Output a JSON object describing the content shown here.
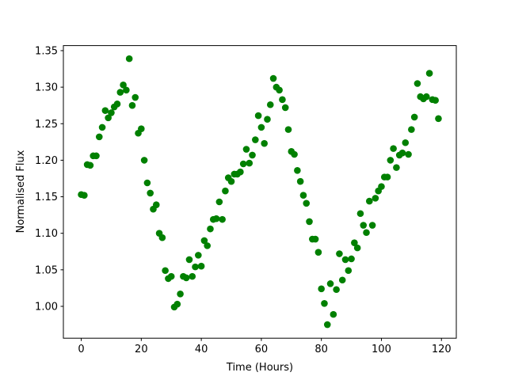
{
  "chart_data": {
    "type": "scatter",
    "x_label": "Time (Hours)",
    "y_label": "Normalised Flux",
    "color": "#008000",
    "x": [
      0,
      1,
      2,
      3,
      4,
      5,
      6,
      7,
      8,
      9,
      10,
      11,
      12,
      13,
      14,
      15,
      16,
      17,
      18,
      19,
      20,
      21,
      22,
      23,
      24,
      25,
      26,
      27,
      28,
      29,
      30,
      31,
      32,
      33,
      34,
      35,
      36,
      37,
      38,
      39,
      40,
      41,
      42,
      43,
      44,
      45,
      46,
      47,
      48,
      49,
      50,
      51,
      52,
      53,
      54,
      55,
      56,
      57,
      58,
      59,
      60,
      61,
      62,
      63,
      64,
      65,
      66,
      67,
      68,
      69,
      70,
      71,
      72,
      73,
      74,
      75,
      76,
      77,
      78,
      79,
      80,
      81,
      82,
      83,
      84,
      85,
      86,
      87,
      88,
      89,
      90,
      91,
      92,
      93,
      94,
      95,
      96,
      97,
      98,
      99,
      100,
      101,
      102,
      103,
      104,
      105,
      106,
      107,
      108,
      109,
      110,
      111,
      112,
      113,
      114,
      115,
      116,
      117,
      118,
      119
    ],
    "values": [
      1.153,
      1.152,
      1.194,
      1.193,
      1.206,
      1.206,
      1.232,
      1.245,
      1.268,
      1.258,
      1.265,
      1.273,
      1.277,
      1.293,
      1.303,
      1.296,
      1.339,
      1.275,
      1.286,
      1.237,
      1.243,
      1.2,
      1.169,
      1.155,
      1.133,
      1.139,
      1.1,
      1.094,
      1.049,
      1.038,
      1.041,
      0.999,
      1.003,
      1.017,
      1.041,
      1.039,
      1.064,
      1.041,
      1.054,
      1.07,
      1.055,
      1.09,
      1.083,
      1.106,
      1.119,
      1.12,
      1.143,
      1.119,
      1.158,
      1.176,
      1.171,
      1.181,
      1.181,
      1.184,
      1.195,
      1.215,
      1.196,
      1.207,
      1.228,
      1.261,
      1.245,
      1.223,
      1.256,
      1.276,
      1.312,
      1.3,
      1.296,
      1.283,
      1.272,
      1.242,
      1.212,
      1.208,
      1.186,
      1.171,
      1.152,
      1.141,
      1.116,
      1.092,
      1.092,
      1.074,
      1.024,
      1.004,
      0.975,
      1.031,
      0.989,
      1.023,
      1.072,
      1.036,
      1.064,
      1.049,
      1.065,
      1.087,
      1.08,
      1.127,
      1.111,
      1.101,
      1.144,
      1.111,
      1.148,
      1.158,
      1.164,
      1.177,
      1.177,
      1.2,
      1.216,
      1.19,
      1.207,
      1.21,
      1.224,
      1.208,
      1.242,
      1.259,
      1.305,
      1.287,
      1.284,
      1.287,
      1.319,
      1.283,
      1.282,
      1.257
    ],
    "xlim": [
      -5.95,
      124.95
    ],
    "xticks": [
      0,
      20,
      40,
      60,
      80,
      100,
      120
    ],
    "ylim": [
      0.9564,
      1.3569
    ],
    "yticks": [
      {
        "value": 1,
        "label": "1.00"
      },
      1.05,
      {
        "value": 1.1,
        "label": "1.10"
      },
      1.15,
      {
        "value": 1.2,
        "label": "1.20"
      },
      1.25,
      {
        "value": 1.3,
        "label": "1.30"
      },
      1.35
    ],
    "grid": false
  }
}
